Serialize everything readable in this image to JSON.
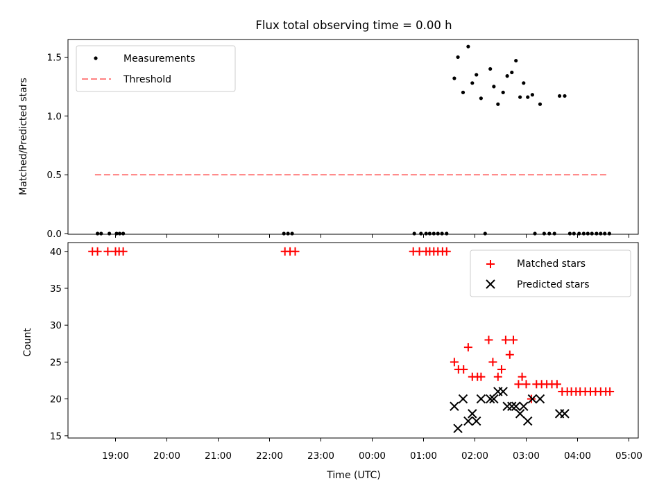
{
  "chart_data": [
    {
      "type": "scatter",
      "title": "Flux total observing time = 0.00 h",
      "ylabel": "Matched/Predicted stars",
      "xlabel": "",
      "ylim": [
        0,
        1.65
      ],
      "yticks": [
        "0.0",
        "0.5",
        "1.0",
        "1.5"
      ],
      "legend_placement": "top-left",
      "threshold": {
        "name": "Threshold",
        "value": 0.5,
        "x_range": [
          18.6,
          28.6
        ],
        "color": "#ff8080"
      },
      "series": [
        {
          "name": "Measurements",
          "color": "#000000",
          "points": [
            [
              18.65,
              0
            ],
            [
              18.72,
              0
            ],
            [
              18.88,
              0
            ],
            [
              19.02,
              0
            ],
            [
              19.08,
              0
            ],
            [
              19.15,
              0
            ],
            [
              22.28,
              0
            ],
            [
              22.36,
              0
            ],
            [
              22.44,
              0
            ],
            [
              24.82,
              0
            ],
            [
              24.95,
              0
            ],
            [
              25.05,
              0
            ],
            [
              25.12,
              0
            ],
            [
              25.2,
              0
            ],
            [
              25.28,
              0
            ],
            [
              25.36,
              0
            ],
            [
              25.45,
              0
            ],
            [
              25.6,
              1.32
            ],
            [
              25.67,
              1.5
            ],
            [
              25.77,
              1.2
            ],
            [
              25.87,
              1.59
            ],
            [
              25.95,
              1.28
            ],
            [
              26.03,
              1.35
            ],
            [
              26.12,
              1.15
            ],
            [
              26.3,
              1.4
            ],
            [
              26.37,
              1.25
            ],
            [
              26.45,
              1.1
            ],
            [
              26.55,
              1.2
            ],
            [
              26.63,
              1.34
            ],
            [
              26.72,
              1.37
            ],
            [
              26.8,
              1.47
            ],
            [
              26.88,
              1.16
            ],
            [
              26.95,
              1.28
            ],
            [
              27.03,
              1.16
            ],
            [
              27.12,
              1.18
            ],
            [
              27.27,
              1.1
            ],
            [
              27.65,
              1.17
            ],
            [
              27.75,
              1.17
            ],
            [
              26.2,
              0
            ],
            [
              27.17,
              0
            ],
            [
              27.35,
              0
            ],
            [
              27.45,
              0
            ],
            [
              27.55,
              0
            ],
            [
              27.85,
              0
            ],
            [
              27.93,
              0
            ],
            [
              28.03,
              0
            ],
            [
              28.12,
              0
            ],
            [
              28.2,
              0
            ],
            [
              28.28,
              0
            ],
            [
              28.37,
              0
            ],
            [
              28.45,
              0
            ],
            [
              28.53,
              0
            ],
            [
              28.62,
              0
            ]
          ]
        }
      ]
    },
    {
      "type": "scatter",
      "title": "",
      "ylabel": "Count",
      "xlabel": "Time (UTC)",
      "ylim": [
        14.7,
        41.2
      ],
      "yticks": [
        "15",
        "20",
        "25",
        "30",
        "35",
        "40"
      ],
      "x_tick_values": [
        19,
        20,
        21,
        22,
        23,
        24,
        25,
        26,
        27,
        28,
        29
      ],
      "x_tick_labels": [
        "19:00",
        "20:00",
        "21:00",
        "22:00",
        "23:00",
        "00:00",
        "01:00",
        "02:00",
        "03:00",
        "04:00",
        "05:00"
      ],
      "legend_placement": "top-right",
      "series": [
        {
          "name": "Matched stars",
          "color": "#ff0000",
          "points": [
            [
              18.55,
              40
            ],
            [
              18.65,
              40
            ],
            [
              18.85,
              40
            ],
            [
              19.0,
              40
            ],
            [
              19.07,
              40
            ],
            [
              19.15,
              40
            ],
            [
              22.3,
              40
            ],
            [
              22.4,
              40
            ],
            [
              22.5,
              40
            ],
            [
              24.8,
              40
            ],
            [
              24.92,
              40
            ],
            [
              25.05,
              40
            ],
            [
              25.12,
              40
            ],
            [
              25.2,
              40
            ],
            [
              25.28,
              40
            ],
            [
              25.37,
              40
            ],
            [
              25.45,
              40
            ],
            [
              25.6,
              25
            ],
            [
              25.68,
              24
            ],
            [
              25.78,
              24
            ],
            [
              25.87,
              27
            ],
            [
              25.95,
              23
            ],
            [
              26.05,
              23
            ],
            [
              26.12,
              23
            ],
            [
              26.27,
              28
            ],
            [
              26.35,
              25
            ],
            [
              26.45,
              23
            ],
            [
              26.52,
              24
            ],
            [
              26.6,
              28
            ],
            [
              26.68,
              26
            ],
            [
              26.75,
              28
            ],
            [
              26.85,
              22
            ],
            [
              26.92,
              23
            ],
            [
              27.0,
              22
            ],
            [
              27.1,
              20
            ],
            [
              27.2,
              22
            ],
            [
              27.3,
              22
            ],
            [
              27.4,
              22
            ],
            [
              27.5,
              22
            ],
            [
              27.6,
              22
            ],
            [
              27.7,
              21
            ],
            [
              27.8,
              21
            ],
            [
              27.88,
              21
            ],
            [
              27.97,
              21
            ],
            [
              28.05,
              21
            ],
            [
              28.15,
              21
            ],
            [
              28.25,
              21
            ],
            [
              28.35,
              21
            ],
            [
              28.45,
              21
            ],
            [
              28.55,
              21
            ],
            [
              28.63,
              21
            ]
          ]
        },
        {
          "name": "Predicted stars",
          "color": "#000000",
          "points": [
            [
              25.6,
              19
            ],
            [
              25.67,
              16
            ],
            [
              25.77,
              20
            ],
            [
              25.87,
              17
            ],
            [
              25.95,
              18
            ],
            [
              26.03,
              17
            ],
            [
              26.12,
              20
            ],
            [
              26.3,
              20
            ],
            [
              26.37,
              20
            ],
            [
              26.45,
              21
            ],
            [
              26.55,
              21
            ],
            [
              26.63,
              19
            ],
            [
              26.72,
              19
            ],
            [
              26.8,
              19
            ],
            [
              26.88,
              18
            ],
            [
              26.95,
              19
            ],
            [
              27.03,
              17
            ],
            [
              27.12,
              20
            ],
            [
              27.27,
              20
            ],
            [
              27.65,
              18
            ],
            [
              27.75,
              18
            ]
          ]
        }
      ]
    }
  ]
}
